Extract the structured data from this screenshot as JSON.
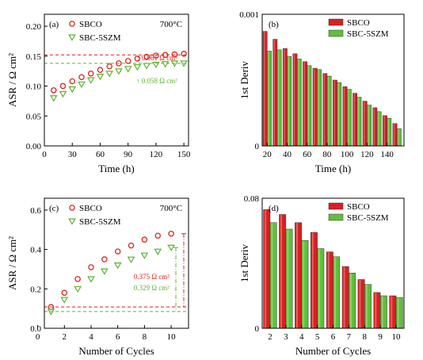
{
  "colors": {
    "red": "#e0201b",
    "green": "#5cb32e",
    "red_fill": "#d92020",
    "green_fill": "#5fbf3a",
    "axis": "#000000"
  },
  "chart_data": [
    {
      "id": "a",
      "type": "scatter",
      "panel_label": "(a)",
      "temperature": "700°C",
      "xlabel": "Time (h)",
      "ylabel": "ASR / Ω cm²",
      "xlim": [
        0,
        155
      ],
      "ylim": [
        0,
        0.22
      ],
      "xticks": [
        0,
        30,
        60,
        90,
        120,
        150
      ],
      "xticklabels": [
        "0",
        "30",
        "60",
        "90",
        "120",
        "150"
      ],
      "yticks": [
        0,
        0.05,
        0.1,
        0.15,
        0.2
      ],
      "yticklabels": [
        "0.00",
        "0.05",
        "0.10",
        "0.15",
        "0.20"
      ],
      "series": [
        {
          "name": "SBCO",
          "marker": "circle",
          "color": "#e0201b",
          "x": [
            10,
            20,
            30,
            40,
            50,
            60,
            70,
            80,
            90,
            100,
            110,
            120,
            130,
            140,
            150
          ],
          "y": [
            0.093,
            0.1,
            0.108,
            0.115,
            0.121,
            0.127,
            0.133,
            0.138,
            0.142,
            0.146,
            0.149,
            0.151,
            0.152,
            0.153,
            0.154
          ]
        },
        {
          "name": "SBC-5SZM",
          "marker": "triangle-down",
          "color": "#5cb32e",
          "x": [
            10,
            20,
            30,
            40,
            50,
            60,
            70,
            80,
            90,
            100,
            110,
            120,
            130,
            140,
            150
          ],
          "y": [
            0.08,
            0.087,
            0.095,
            0.103,
            0.11,
            0.116,
            0.121,
            0.125,
            0.129,
            0.132,
            0.134,
            0.136,
            0.137,
            0.138,
            0.138
          ]
        }
      ],
      "hlines": [
        {
          "y": 0.152,
          "color": "#e0201b"
        },
        {
          "y": 0.138,
          "color": "#5cb32e"
        }
      ],
      "annotations": [
        {
          "text": "↑ 0.061 Ω cm²",
          "color": "#e0201b"
        },
        {
          "text": "↑ 0.058 Ω cm²",
          "color": "#5cb32e"
        }
      ]
    },
    {
      "id": "b",
      "type": "bar",
      "panel_label": "(b)",
      "xlabel": "Time (h)",
      "ylabel": "1st Deriv",
      "xlim": [
        15,
        157
      ],
      "ylim": [
        0,
        0.001
      ],
      "xticks": [
        20,
        40,
        60,
        80,
        100,
        120,
        140
      ],
      "xticklabels": [
        "20",
        "40",
        "60",
        "80",
        "100",
        "120",
        "140"
      ],
      "yticks": [
        0,
        0.001
      ],
      "yticklabels": [
        "0",
        "0.001"
      ],
      "categories": [
        20,
        30,
        40,
        50,
        60,
        70,
        80,
        90,
        100,
        110,
        120,
        130,
        140,
        150
      ],
      "series": [
        {
          "name": "SBCO",
          "color": "#d92020",
          "values": [
            0.00087,
            0.00081,
            0.00074,
            0.0007,
            0.00064,
            0.00059,
            0.00055,
            0.0005,
            0.00045,
            0.0004,
            0.00034,
            0.00029,
            0.00023,
            0.00017
          ]
        },
        {
          "name": "SBC-5SZM",
          "color": "#5fbf3a",
          "values": [
            0.00072,
            0.00073,
            0.00068,
            0.00066,
            0.00061,
            0.00058,
            0.00053,
            0.00048,
            0.00043,
            0.00037,
            0.00031,
            0.00026,
            0.00021,
            0.00013
          ]
        }
      ]
    },
    {
      "id": "c",
      "type": "scatter",
      "panel_label": "(c)",
      "temperature": "700°C",
      "xlabel": "Number of Cycles",
      "ylabel": "ASR / Ω cm²",
      "xlim": [
        0.5,
        11.3
      ],
      "ylim": [
        0,
        0.66
      ],
      "xticks": [
        0,
        2,
        4,
        6,
        8,
        10
      ],
      "xticklabels": [
        "0",
        "2",
        "4",
        "6",
        "8",
        "10"
      ],
      "yticks": [
        0,
        0.2,
        0.4,
        0.6
      ],
      "yticklabels": [
        "0.0",
        "0.2",
        "0.4",
        "0.6"
      ],
      "series": [
        {
          "name": "SBCO",
          "marker": "circle",
          "color": "#e0201b",
          "x": [
            1,
            2,
            3,
            4,
            5,
            6,
            7,
            8,
            9,
            10
          ],
          "y": [
            0.108,
            0.18,
            0.25,
            0.31,
            0.35,
            0.39,
            0.42,
            0.45,
            0.47,
            0.48
          ]
        },
        {
          "name": "SBC-5SZM",
          "marker": "triangle-down",
          "color": "#5cb32e",
          "x": [
            1,
            2,
            3,
            4,
            5,
            6,
            7,
            8,
            9,
            10
          ],
          "y": [
            0.085,
            0.145,
            0.2,
            0.25,
            0.29,
            0.32,
            0.35,
            0.37,
            0.39,
            0.41
          ]
        }
      ],
      "hlines": [
        {
          "y": 0.108,
          "color": "#e0201b"
        },
        {
          "y": 0.085,
          "color": "#5cb32e"
        }
      ],
      "annotations": [
        {
          "text": "0.375 Ω cm²",
          "color": "#e0201b"
        },
        {
          "text": "0.329 Ω cm²",
          "color": "#5cb32e"
        }
      ]
    },
    {
      "id": "d",
      "type": "bar",
      "panel_label": "(d)",
      "xlabel": "Number of Cycles",
      "ylabel": "1st Deriv",
      "xlim": [
        1.5,
        10.5
      ],
      "ylim": [
        0,
        0.08
      ],
      "xticks": [
        2,
        3,
        4,
        5,
        6,
        7,
        8,
        9,
        10
      ],
      "xticklabels": [
        "2",
        "3",
        "4",
        "5",
        "6",
        "7",
        "8",
        "9",
        "10"
      ],
      "yticks": [
        0,
        0.08
      ],
      "yticklabels": [
        "0",
        "0.08"
      ],
      "categories": [
        2,
        3,
        4,
        5,
        6,
        7,
        8,
        9,
        10
      ],
      "series": [
        {
          "name": "SBCO",
          "color": "#d92020",
          "values": [
            0.073,
            0.07,
            0.065,
            0.059,
            0.047,
            0.038,
            0.03,
            0.022,
            0.02
          ]
        },
        {
          "name": "SBC-5SZM",
          "color": "#5fbf3a",
          "values": [
            0.065,
            0.061,
            0.054,
            0.049,
            0.044,
            0.034,
            0.027,
            0.02,
            0.019
          ]
        }
      ]
    }
  ]
}
